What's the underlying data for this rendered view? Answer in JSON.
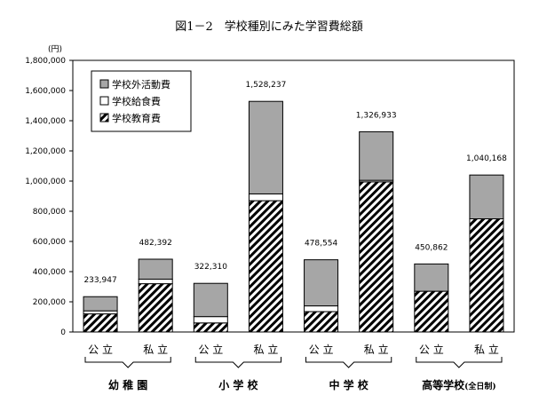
{
  "chart_data": {
    "type": "bar",
    "stacked": true,
    "title": "図1－2　学校種別にみた学習費総額",
    "unit_label": "(円)",
    "ylim": [
      0,
      1800000
    ],
    "yticks": [
      "0",
      "200,000",
      "400,000",
      "600,000",
      "800,000",
      "1,000,000",
      "1,200,000",
      "1,400,000",
      "1,600,000",
      "1,800,000"
    ],
    "categories": [
      "公 立",
      "私 立",
      "公 立",
      "私 立",
      "公 立",
      "私 立",
      "公 立",
      "私 立"
    ],
    "groups": [
      {
        "label": "幼 稚 園",
        "sub": ""
      },
      {
        "label": "小 学 校",
        "sub": ""
      },
      {
        "label": "中 学 校",
        "sub": ""
      },
      {
        "label": "高等学校",
        "sub": "(全日制)"
      }
    ],
    "series": [
      {
        "name": "学校教育費",
        "pattern": "hatch",
        "values": [
          120000,
          320000,
          60000,
          870000,
          135000,
          995000,
          270000,
          750000
        ]
      },
      {
        "name": "学校給食費",
        "pattern": "white",
        "values": [
          20000,
          30000,
          42000,
          45000,
          38000,
          10000,
          0,
          0
        ]
      },
      {
        "name": "学校外活動費",
        "pattern": "gray",
        "values": [
          93947,
          132392,
          220310,
          613237,
          305554,
          321933,
          180862,
          290168
        ]
      }
    ],
    "totals": [
      "233,947",
      "482,392",
      "322,310",
      "1,528,237",
      "478,554",
      "1,326,933",
      "450,862",
      "1,040,168"
    ],
    "legend_order": [
      "学校外活動費",
      "学校給食費",
      "学校教育費"
    ],
    "legend_position": "top-left",
    "colors": {
      "gray": "#a6a6a6",
      "white": "#ffffff",
      "hatch": "#000000",
      "axis": "#000000"
    }
  }
}
